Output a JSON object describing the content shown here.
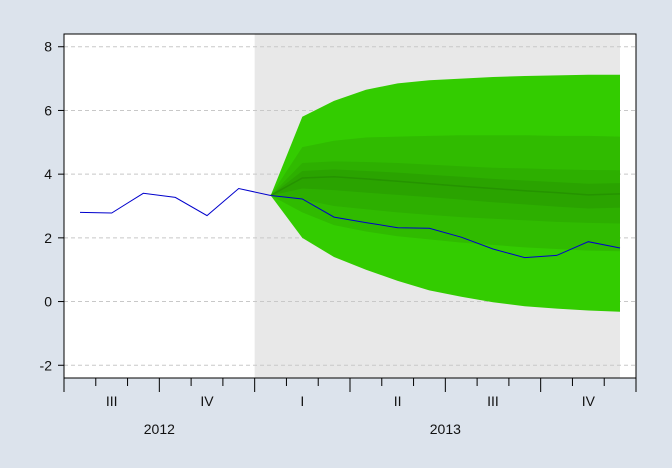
{
  "chart_data": {
    "type": "line",
    "title": "",
    "xlabel": "",
    "ylabel": "",
    "ylim": [
      -2.4,
      8.4
    ],
    "yticks": [
      -2,
      0,
      2,
      4,
      6,
      8
    ],
    "grid": true,
    "legend": "none",
    "x_period": {
      "start": 2012.5,
      "end": 2014.0
    },
    "forecast_start": 2013.0,
    "year_labels": [
      {
        "label": "2012",
        "center": 2012.75
      },
      {
        "label": "2013",
        "center": 2013.5
      }
    ],
    "quarter_labels": [
      {
        "label": "III",
        "center": 2012.625
      },
      {
        "label": "IV",
        "center": 2012.875
      },
      {
        "label": "I",
        "center": 2013.125
      },
      {
        "label": "II",
        "center": 2013.375
      },
      {
        "label": "III",
        "center": 2013.625
      },
      {
        "label": "IV",
        "center": 2013.875
      }
    ],
    "series": [
      {
        "kind": "actual",
        "color": "#0000cc",
        "points": [
          [
            2012.542,
            2.8
          ],
          [
            2012.625,
            2.78
          ],
          [
            2012.708,
            3.4
          ],
          [
            2012.792,
            3.27
          ],
          [
            2012.875,
            2.7
          ],
          [
            2012.958,
            3.55
          ],
          [
            2013.042,
            3.33
          ],
          [
            2013.125,
            3.22
          ],
          [
            2013.208,
            2.65
          ],
          [
            2013.292,
            2.48
          ],
          [
            2013.375,
            2.32
          ],
          [
            2013.458,
            2.3
          ],
          [
            2013.542,
            2.02
          ],
          [
            2013.625,
            1.65
          ],
          [
            2013.708,
            1.38
          ],
          [
            2013.792,
            1.45
          ],
          [
            2013.875,
            1.88
          ],
          [
            2013.958,
            1.68
          ]
        ]
      }
    ],
    "fan_chart": {
      "x": [
        2013.042,
        2013.125,
        2013.208,
        2013.292,
        2013.375,
        2013.458,
        2013.542,
        2013.625,
        2013.708,
        2013.792,
        2013.875,
        2013.958
      ],
      "median": [
        3.33,
        3.88,
        3.92,
        3.85,
        3.78,
        3.7,
        3.62,
        3.55,
        3.48,
        3.42,
        3.35,
        3.38
      ],
      "bands": [
        {
          "color": "#33cc00",
          "lower": [
            3.33,
            2.0,
            1.4,
            1.0,
            0.65,
            0.35,
            0.15,
            -0.02,
            -0.15,
            -0.22,
            -0.28,
            -0.32
          ],
          "upper": [
            3.33,
            5.8,
            6.3,
            6.65,
            6.85,
            6.95,
            7.0,
            7.05,
            7.08,
            7.1,
            7.12,
            7.12
          ]
        },
        {
          "color": "#30bb00",
          "lower": [
            3.33,
            2.8,
            2.4,
            2.2,
            2.05,
            1.95,
            1.85,
            1.78,
            1.7,
            1.65,
            1.6,
            1.58
          ],
          "upper": [
            3.33,
            4.85,
            5.05,
            5.15,
            5.18,
            5.2,
            5.22,
            5.22,
            5.22,
            5.2,
            5.2,
            5.18
          ]
        },
        {
          "color": "#2daf00",
          "lower": [
            3.33,
            3.2,
            3.0,
            2.9,
            2.8,
            2.72,
            2.65,
            2.6,
            2.55,
            2.5,
            2.47,
            2.45
          ],
          "upper": [
            3.33,
            4.35,
            4.4,
            4.38,
            4.35,
            4.3,
            4.25,
            4.2,
            4.18,
            4.15,
            4.13,
            4.12
          ]
        },
        {
          "color": "#2aa300",
          "lower": [
            3.33,
            3.55,
            3.5,
            3.42,
            3.35,
            3.28,
            3.2,
            3.12,
            3.05,
            2.98,
            2.92,
            2.95
          ],
          "upper": [
            3.33,
            4.1,
            4.15,
            4.1,
            4.05,
            3.98,
            3.92,
            3.85,
            3.8,
            3.75,
            3.7,
            3.72
          ]
        }
      ],
      "median_color": "#259300"
    },
    "colors": {
      "frame_bg": "#dce3ec",
      "plot_bg": "#ffffff",
      "forecast_bg": "#e8e8e8",
      "grid": "#c8c8c8"
    }
  }
}
